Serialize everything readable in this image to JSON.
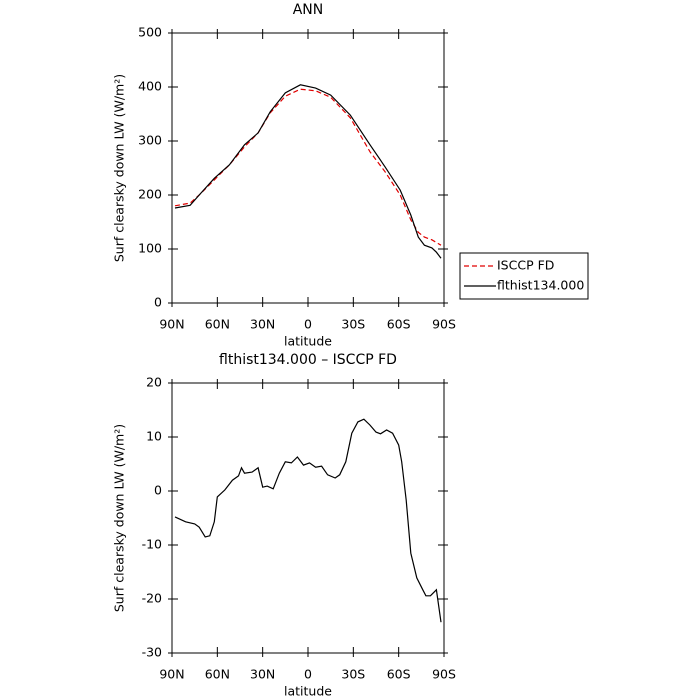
{
  "chart_data": [
    {
      "type": "line",
      "title": "ANN",
      "xlabel": "latitude",
      "ylabel": "Surf clearsky down LW (W/m²)",
      "x": [
        88,
        78,
        72,
        62,
        52,
        42,
        33,
        25,
        15,
        5,
        -5,
        -15,
        -28,
        -41,
        -51,
        -61,
        -68,
        -73,
        -77,
        -82,
        -85,
        -88
      ],
      "series": [
        {
          "name": "ISCCP FD",
          "color": "#e00000",
          "linestyle": "dashed",
          "values": [
            180,
            185,
            200,
            228,
            256,
            289,
            315,
            352,
            383,
            396,
            393,
            381,
            343,
            280,
            243,
            200,
            154,
            131,
            122,
            117,
            112,
            107
          ]
        },
        {
          "name": "flthist134.000",
          "color": "#000000",
          "linestyle": "solid",
          "values": [
            176,
            181,
            200,
            231,
            256,
            293,
            315,
            354,
            389,
            404,
            398,
            385,
            348,
            293,
            252,
            209,
            163,
            122,
            107,
            102,
            94,
            83
          ]
        }
      ],
      "xlim": [
        90,
        -90
      ],
      "xticks": [
        {
          "value": 90,
          "label": "90N"
        },
        {
          "value": 60,
          "label": "60N"
        },
        {
          "value": 30,
          "label": "30N"
        },
        0,
        {
          "value": -30,
          "label": "30S"
        },
        {
          "value": -60,
          "label": "60S"
        },
        {
          "value": -90,
          "label": "90S"
        }
      ],
      "ylim": [
        0,
        500
      ],
      "yticks": [
        0,
        100,
        200,
        300,
        400,
        500
      ],
      "legend": "right"
    },
    {
      "type": "line",
      "title": "flthist134.000 – ISCCP FD",
      "xlabel": "latitude",
      "ylabel": "Surf clearsky down LW (W/m²)",
      "x": [
        88,
        81,
        75,
        72,
        68,
        65,
        62,
        60,
        55,
        50,
        46,
        44,
        42,
        37,
        33,
        30,
        27,
        23,
        19,
        15,
        11,
        7,
        3,
        -1,
        -5,
        -9,
        -13,
        -18,
        -21,
        -25,
        -29,
        -33,
        -37,
        -41,
        -45,
        -48,
        -52,
        -56,
        -60,
        -62,
        -65,
        -68,
        -72,
        -76,
        -78,
        -81,
        -85,
        -88
      ],
      "series": [
        {
          "name": "flthist134.000",
          "color": "#000000",
          "linestyle": "solid",
          "values": [
            -4.8,
            -5.7,
            -6.1,
            -6.7,
            -8.5,
            -8.3,
            -5.7,
            -1.1,
            0.2,
            2.0,
            2.8,
            4.3,
            3.3,
            3.5,
            4.3,
            0.7,
            0.9,
            0.4,
            3.3,
            5.4,
            5.2,
            6.3,
            4.8,
            5.2,
            4.4,
            4.6,
            3.0,
            2.4,
            3.0,
            5.4,
            10.7,
            12.8,
            13.3,
            12.2,
            10.9,
            10.6,
            11.3,
            10.7,
            8.5,
            5.4,
            -1.7,
            -11.5,
            -16.1,
            -18.3,
            -19.4,
            -19.4,
            -18.3,
            -24.3
          ]
        }
      ],
      "xlim": [
        90,
        -90
      ],
      "xticks": [
        {
          "value": 90,
          "label": "90N"
        },
        {
          "value": 60,
          "label": "60N"
        },
        {
          "value": 30,
          "label": "30N"
        },
        0,
        {
          "value": -30,
          "label": "30S"
        },
        {
          "value": -60,
          "label": "60S"
        },
        {
          "value": -90,
          "label": "90S"
        }
      ],
      "ylim": [
        -30,
        20
      ],
      "yticks": [
        -30,
        -20,
        -10,
        0,
        10,
        20
      ]
    }
  ]
}
